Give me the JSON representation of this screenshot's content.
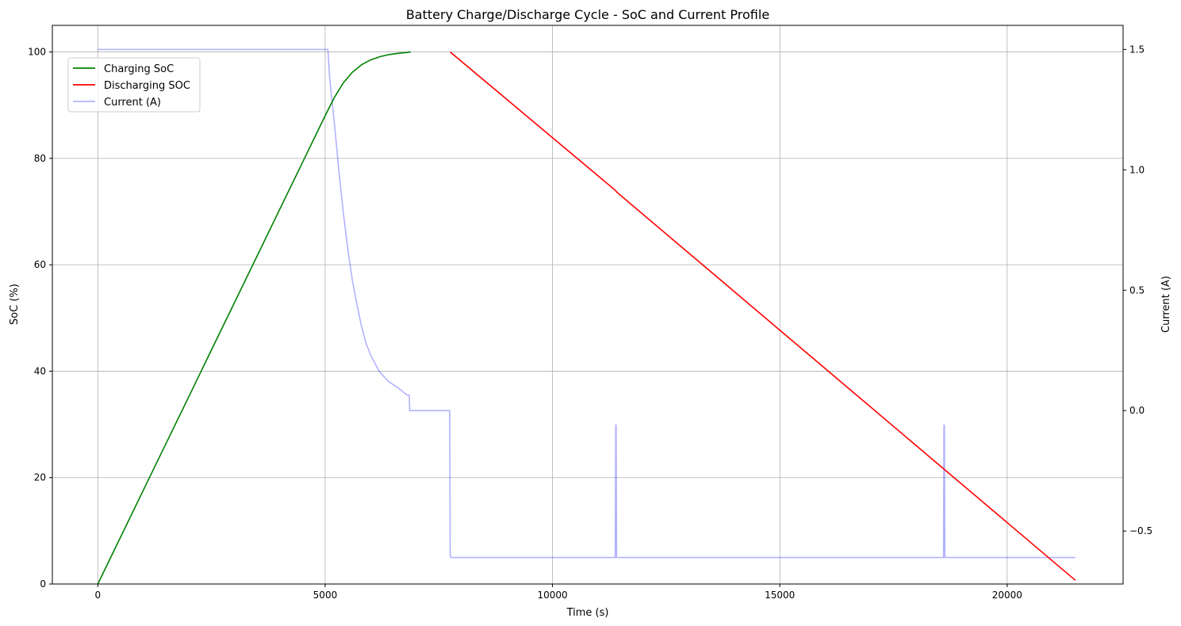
{
  "chart_data": {
    "type": "line",
    "title": "Battery Charge/Discharge Cycle - SoC and Current Profile",
    "xlabel": "Time (s)",
    "ylabel": "SoC (%)",
    "y2label": "Current (A)",
    "xlim": [
      -1000,
      22550
    ],
    "ylim": [
      0,
      105
    ],
    "y2lim": [
      -0.72,
      1.6
    ],
    "xticks": [
      0,
      5000,
      10000,
      15000,
      20000
    ],
    "yticks": [
      0,
      20,
      40,
      60,
      80,
      100
    ],
    "y2ticks": [
      -0.5,
      0.0,
      0.5,
      1.0,
      1.5
    ],
    "y2tick_labels": [
      "−0.5",
      "0.0",
      "0.5",
      "1.0",
      "1.5"
    ],
    "grid": true,
    "legend_position": "upper-left",
    "series": [
      {
        "name": "Charging SoC",
        "axis": "left",
        "color": "#008000",
        "x": [
          0,
          500,
          1000,
          1500,
          2000,
          2500,
          3000,
          3500,
          4000,
          4500,
          5000,
          5200,
          5400,
          5600,
          5800,
          6000,
          6200,
          6400,
          6600,
          6800,
          6880
        ],
        "y": [
          0,
          8.8,
          17.6,
          26.4,
          35.2,
          44.0,
          52.8,
          61.6,
          70.4,
          79.2,
          88.0,
          91.4,
          94.2,
          96.2,
          97.6,
          98.5,
          99.1,
          99.5,
          99.75,
          99.9,
          100
        ]
      },
      {
        "name": "Discharging SOC",
        "axis": "left",
        "color": "#ff0000",
        "x": [
          7750,
          11380,
          11420,
          21500
        ],
        "y": [
          100,
          74.0,
          73.6,
          0.7
        ]
      },
      {
        "name": "Current (A)",
        "axis": "right",
        "color": "#0000ff",
        "opacity": 0.3,
        "x": [
          0,
          5060,
          5100,
          5200,
          5300,
          5400,
          5500,
          5600,
          5700,
          5800,
          5900,
          6000,
          6200,
          6400,
          6600,
          6800,
          6850,
          6860,
          7740,
          7750,
          7760,
          11370,
          11380,
          11390,
          11400,
          11410,
          18590,
          18600,
          18610,
          18620,
          18630,
          21500
        ],
        "y": [
          1.5,
          1.5,
          1.38,
          1.2,
          1.0,
          0.82,
          0.67,
          0.54,
          0.44,
          0.35,
          0.28,
          0.23,
          0.16,
          0.12,
          0.095,
          0.065,
          0.065,
          0.0,
          0.0,
          -0.6,
          -0.61,
          -0.61,
          -0.61,
          -0.06,
          -0.06,
          -0.61,
          -0.61,
          -0.61,
          -0.06,
          -0.06,
          -0.61,
          -0.61
        ]
      }
    ]
  }
}
